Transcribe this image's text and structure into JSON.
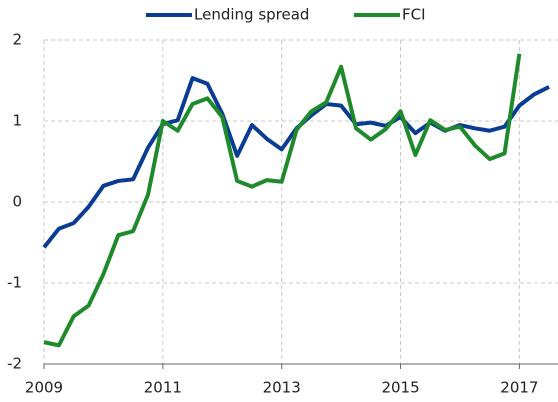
{
  "chart_data": {
    "type": "line",
    "x": [
      2009,
      2009.25,
      2009.5,
      2009.75,
      2010,
      2010.25,
      2010.5,
      2010.75,
      2011,
      2011.25,
      2011.5,
      2011.75,
      2012,
      2012.25,
      2012.5,
      2012.75,
      2013,
      2013.25,
      2013.5,
      2013.75,
      2014,
      2014.25,
      2014.5,
      2014.75,
      2015,
      2015.25,
      2015.5,
      2015.75,
      2016,
      2016.25,
      2016.5,
      2016.75,
      2017,
      2017.25,
      2017.5
    ],
    "series": [
      {
        "name": "Lending spread",
        "color": "#0b3c93",
        "values": [
          -0.56,
          -0.33,
          -0.26,
          -0.06,
          0.2,
          0.26,
          0.28,
          0.67,
          0.96,
          1.01,
          1.53,
          1.46,
          1.09,
          0.57,
          0.95,
          0.78,
          0.65,
          0.91,
          1.07,
          1.21,
          1.19,
          0.96,
          0.98,
          0.94,
          1.05,
          0.85,
          0.98,
          0.88,
          0.95,
          0.91,
          0.88,
          0.93,
          1.19,
          1.33,
          1.42
        ]
      },
      {
        "name": "FCI",
        "color": "#1e8a2c",
        "values": [
          -1.73,
          -1.77,
          -1.41,
          -1.28,
          -0.89,
          -0.41,
          -0.36,
          0.09,
          1.0,
          0.88,
          1.21,
          1.28,
          1.05,
          0.26,
          0.19,
          0.27,
          0.25,
          0.89,
          1.12,
          1.23,
          1.67,
          0.91,
          0.77,
          0.9,
          1.12,
          0.58,
          1.01,
          0.89,
          0.93,
          0.7,
          0.53,
          0.6,
          1.83,
          null,
          null
        ]
      }
    ],
    "xlim": [
      2009,
      2017.65
    ],
    "xticks": [
      2009,
      2011,
      2013,
      2015,
      2017
    ],
    "ylim": [
      -2,
      2
    ],
    "yticks": [
      -2,
      -1,
      0,
      1,
      2
    ],
    "grid": true,
    "legend": "top"
  }
}
